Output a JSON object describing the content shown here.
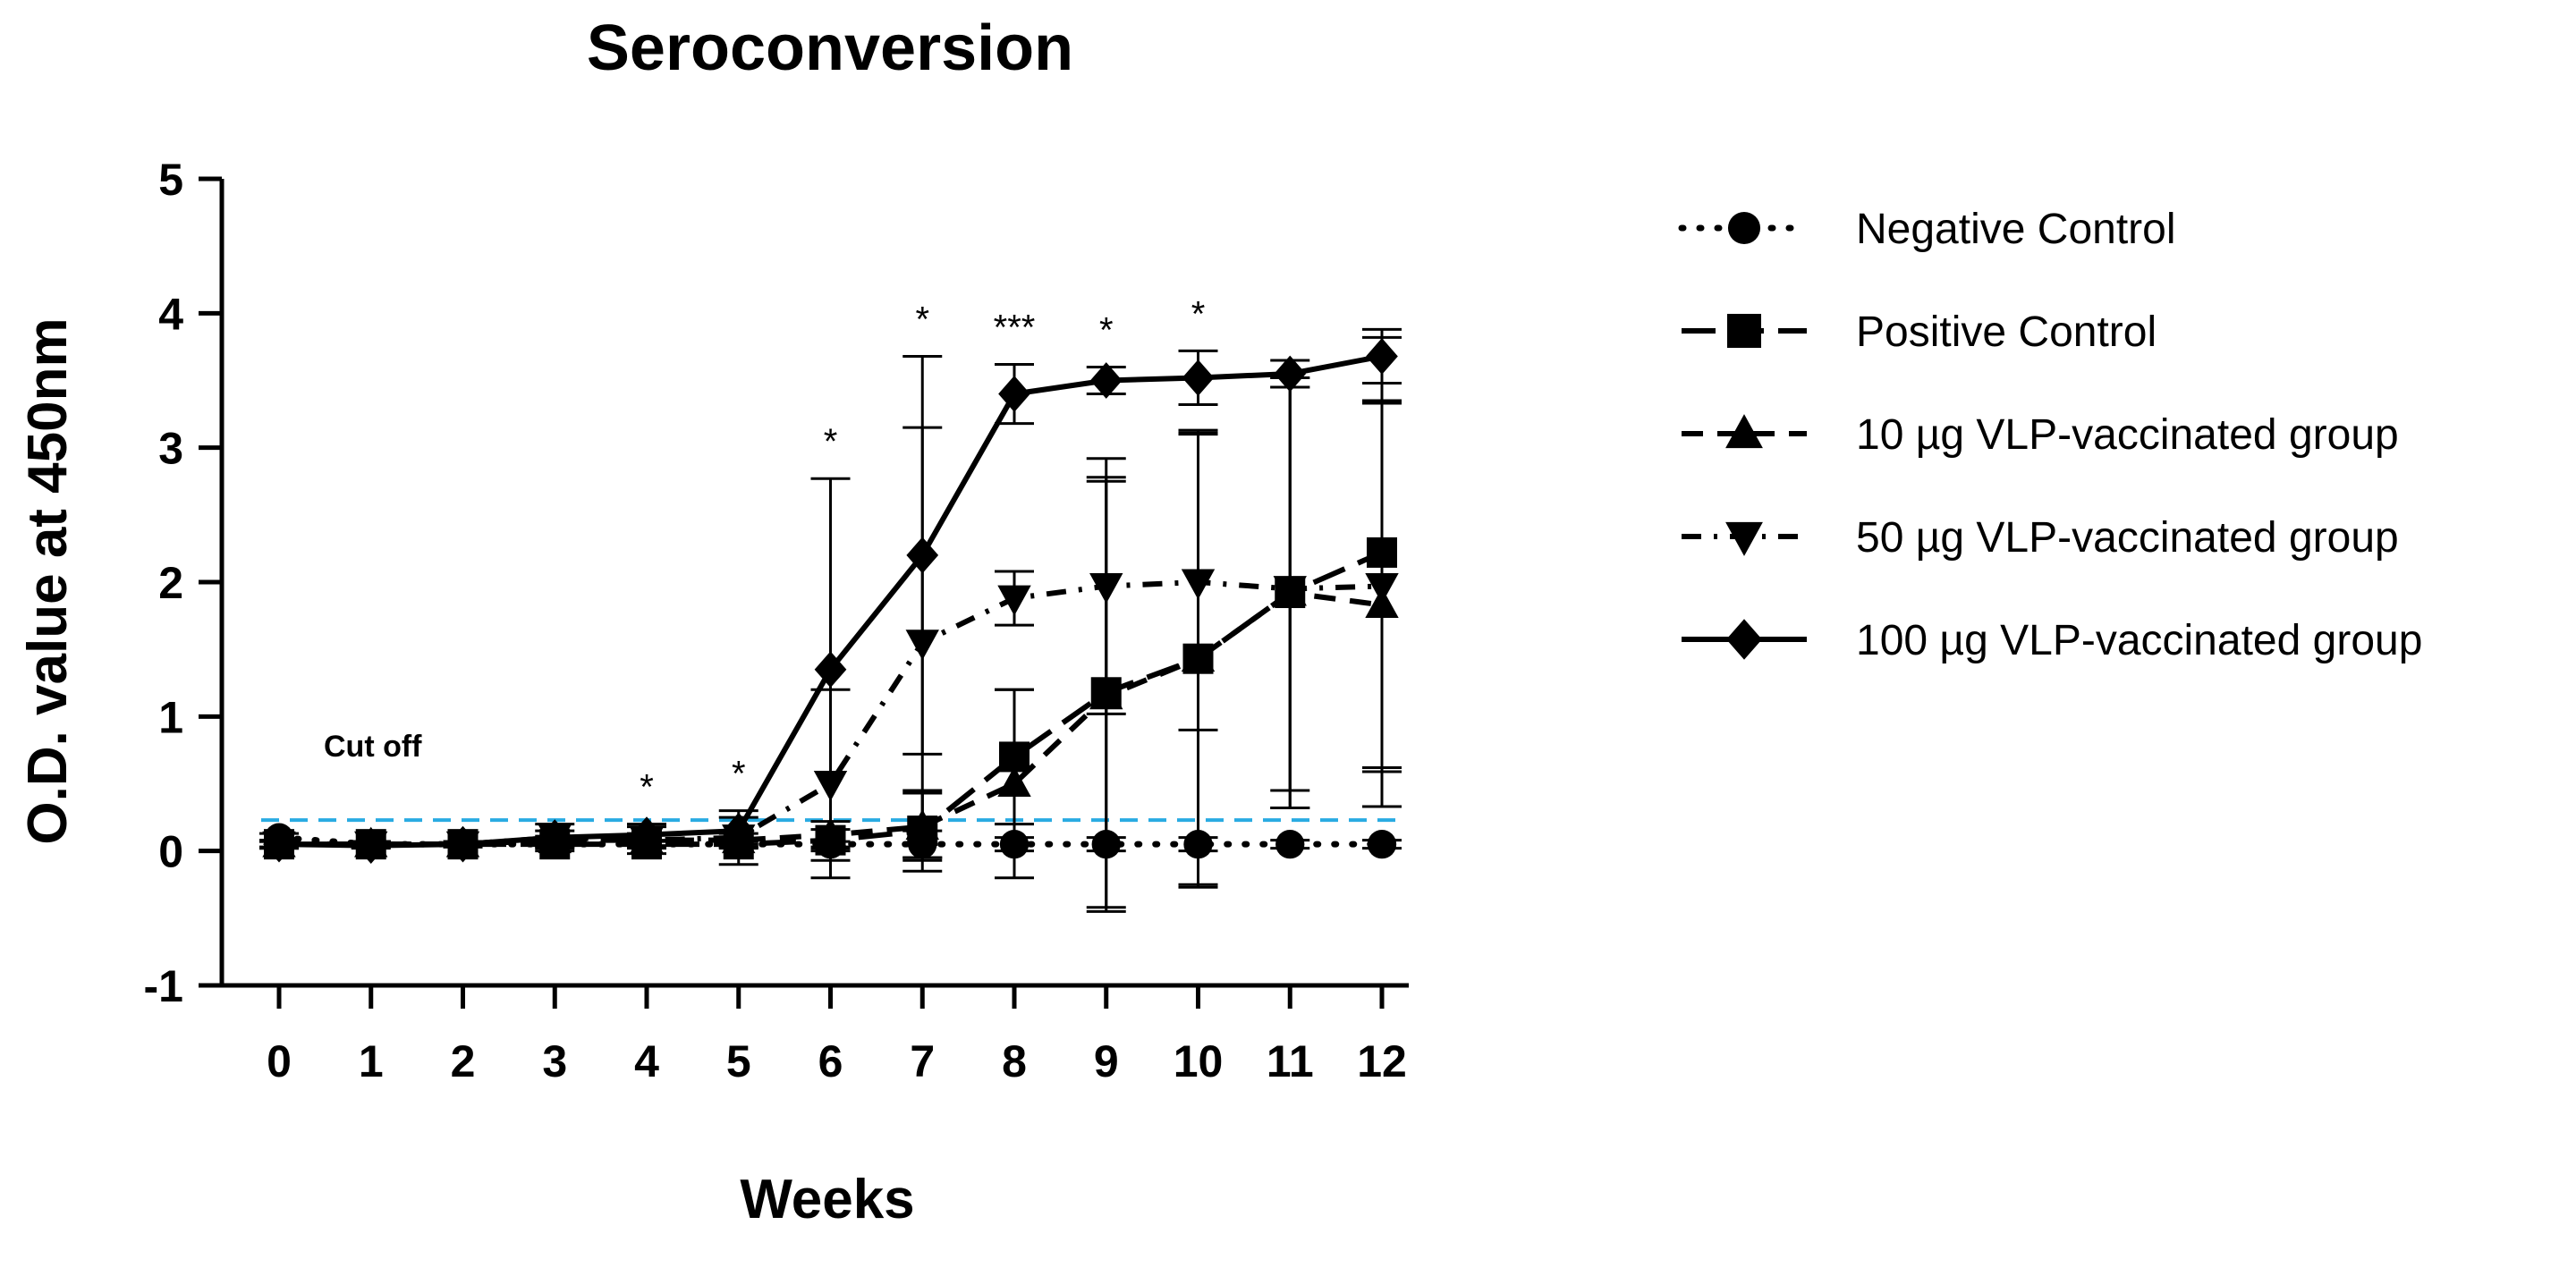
{
  "chart_data": {
    "type": "line",
    "title": "Seroconversion",
    "xlabel": "Weeks",
    "ylabel": "O.D. value at 450nm",
    "x": [
      0,
      1,
      2,
      3,
      4,
      5,
      6,
      7,
      8,
      9,
      10,
      11,
      12
    ],
    "x_tick_labels": [
      "0",
      "1",
      "2",
      "3",
      "4",
      "5",
      "6",
      "7",
      "8",
      "9",
      "10",
      "11",
      "12"
    ],
    "ylim": [
      -1,
      5
    ],
    "y_ticks": [
      -1,
      0,
      1,
      2,
      3,
      4,
      5
    ],
    "y_tick_labels": [
      "-1",
      "0",
      "1",
      "2",
      "3",
      "4",
      "5"
    ],
    "grid": false,
    "legend_position": "right",
    "cutoff": {
      "label": "Cut off",
      "value": 0.23,
      "color": "#29abe2"
    },
    "series": [
      {
        "name": "Negative Control",
        "marker": "circle",
        "dash": "dotted",
        "values": [
          0.1,
          0.05,
          0.05,
          0.05,
          0.05,
          0.05,
          0.05,
          0.05,
          0.05,
          0.05,
          0.05,
          0.05,
          0.05
        ],
        "error": [
          0.03,
          0.02,
          0.02,
          0.02,
          0.02,
          0.02,
          0.02,
          0.1,
          0.05,
          0.05,
          0.05,
          0.03,
          0.03
        ]
      },
      {
        "name": "Positive Control",
        "marker": "square",
        "dash": "dashed-long",
        "values": [
          0.05,
          0.05,
          0.05,
          0.05,
          0.05,
          0.05,
          0.08,
          0.15,
          0.7,
          1.18,
          1.43,
          1.92,
          2.22
        ],
        "error": [
          0.03,
          0.02,
          0.02,
          0.03,
          0.03,
          0.03,
          0.08,
          0.3,
          0.5,
          1.6,
          1.68,
          1.6,
          1.6
        ]
      },
      {
        "name": "10 µg VLP-vaccinated group",
        "marker": "triangle-up",
        "dash": "dashed",
        "values": [
          0.05,
          0.05,
          0.05,
          0.08,
          0.08,
          0.08,
          0.12,
          0.18,
          0.5,
          1.15,
          1.43,
          1.92,
          1.83
        ],
        "error": [
          0.03,
          0.02,
          0.02,
          0.03,
          0.05,
          0.05,
          0.1,
          0.25,
          0.7,
          1.6,
          1.7,
          1.6,
          1.5
        ]
      },
      {
        "name": "50 µg VLP-vaccinated group",
        "marker": "triangle-down",
        "dash": "dash-dot",
        "values": [
          0.05,
          0.05,
          0.05,
          0.1,
          0.08,
          0.1,
          0.5,
          1.55,
          1.88,
          1.97,
          2.0,
          1.95,
          1.97
        ],
        "error": [
          0.03,
          0.02,
          0.02,
          0.1,
          0.1,
          0.2,
          0.7,
          1.6,
          0.2,
          0.95,
          1.1,
          1.5,
          1.38
        ]
      },
      {
        "name": "100 µg VLP-vaccinated group",
        "marker": "diamond",
        "dash": "solid",
        "values": [
          0.05,
          0.04,
          0.05,
          0.1,
          0.12,
          0.15,
          1.35,
          2.2,
          3.4,
          3.5,
          3.52,
          3.55,
          3.68
        ],
        "error": [
          0.02,
          0.02,
          0.02,
          0.05,
          0.08,
          0.1,
          1.42,
          1.48,
          0.22,
          0.1,
          0.2,
          0.1,
          0.2
        ]
      }
    ],
    "significance": [
      {
        "x": 4,
        "label": "*"
      },
      {
        "x": 5,
        "label": "*"
      },
      {
        "x": 6,
        "label": "*"
      },
      {
        "x": 7,
        "label": "*"
      },
      {
        "x": 8,
        "label": "***"
      },
      {
        "x": 9,
        "label": "*"
      },
      {
        "x": 10,
        "label": "*"
      }
    ]
  }
}
